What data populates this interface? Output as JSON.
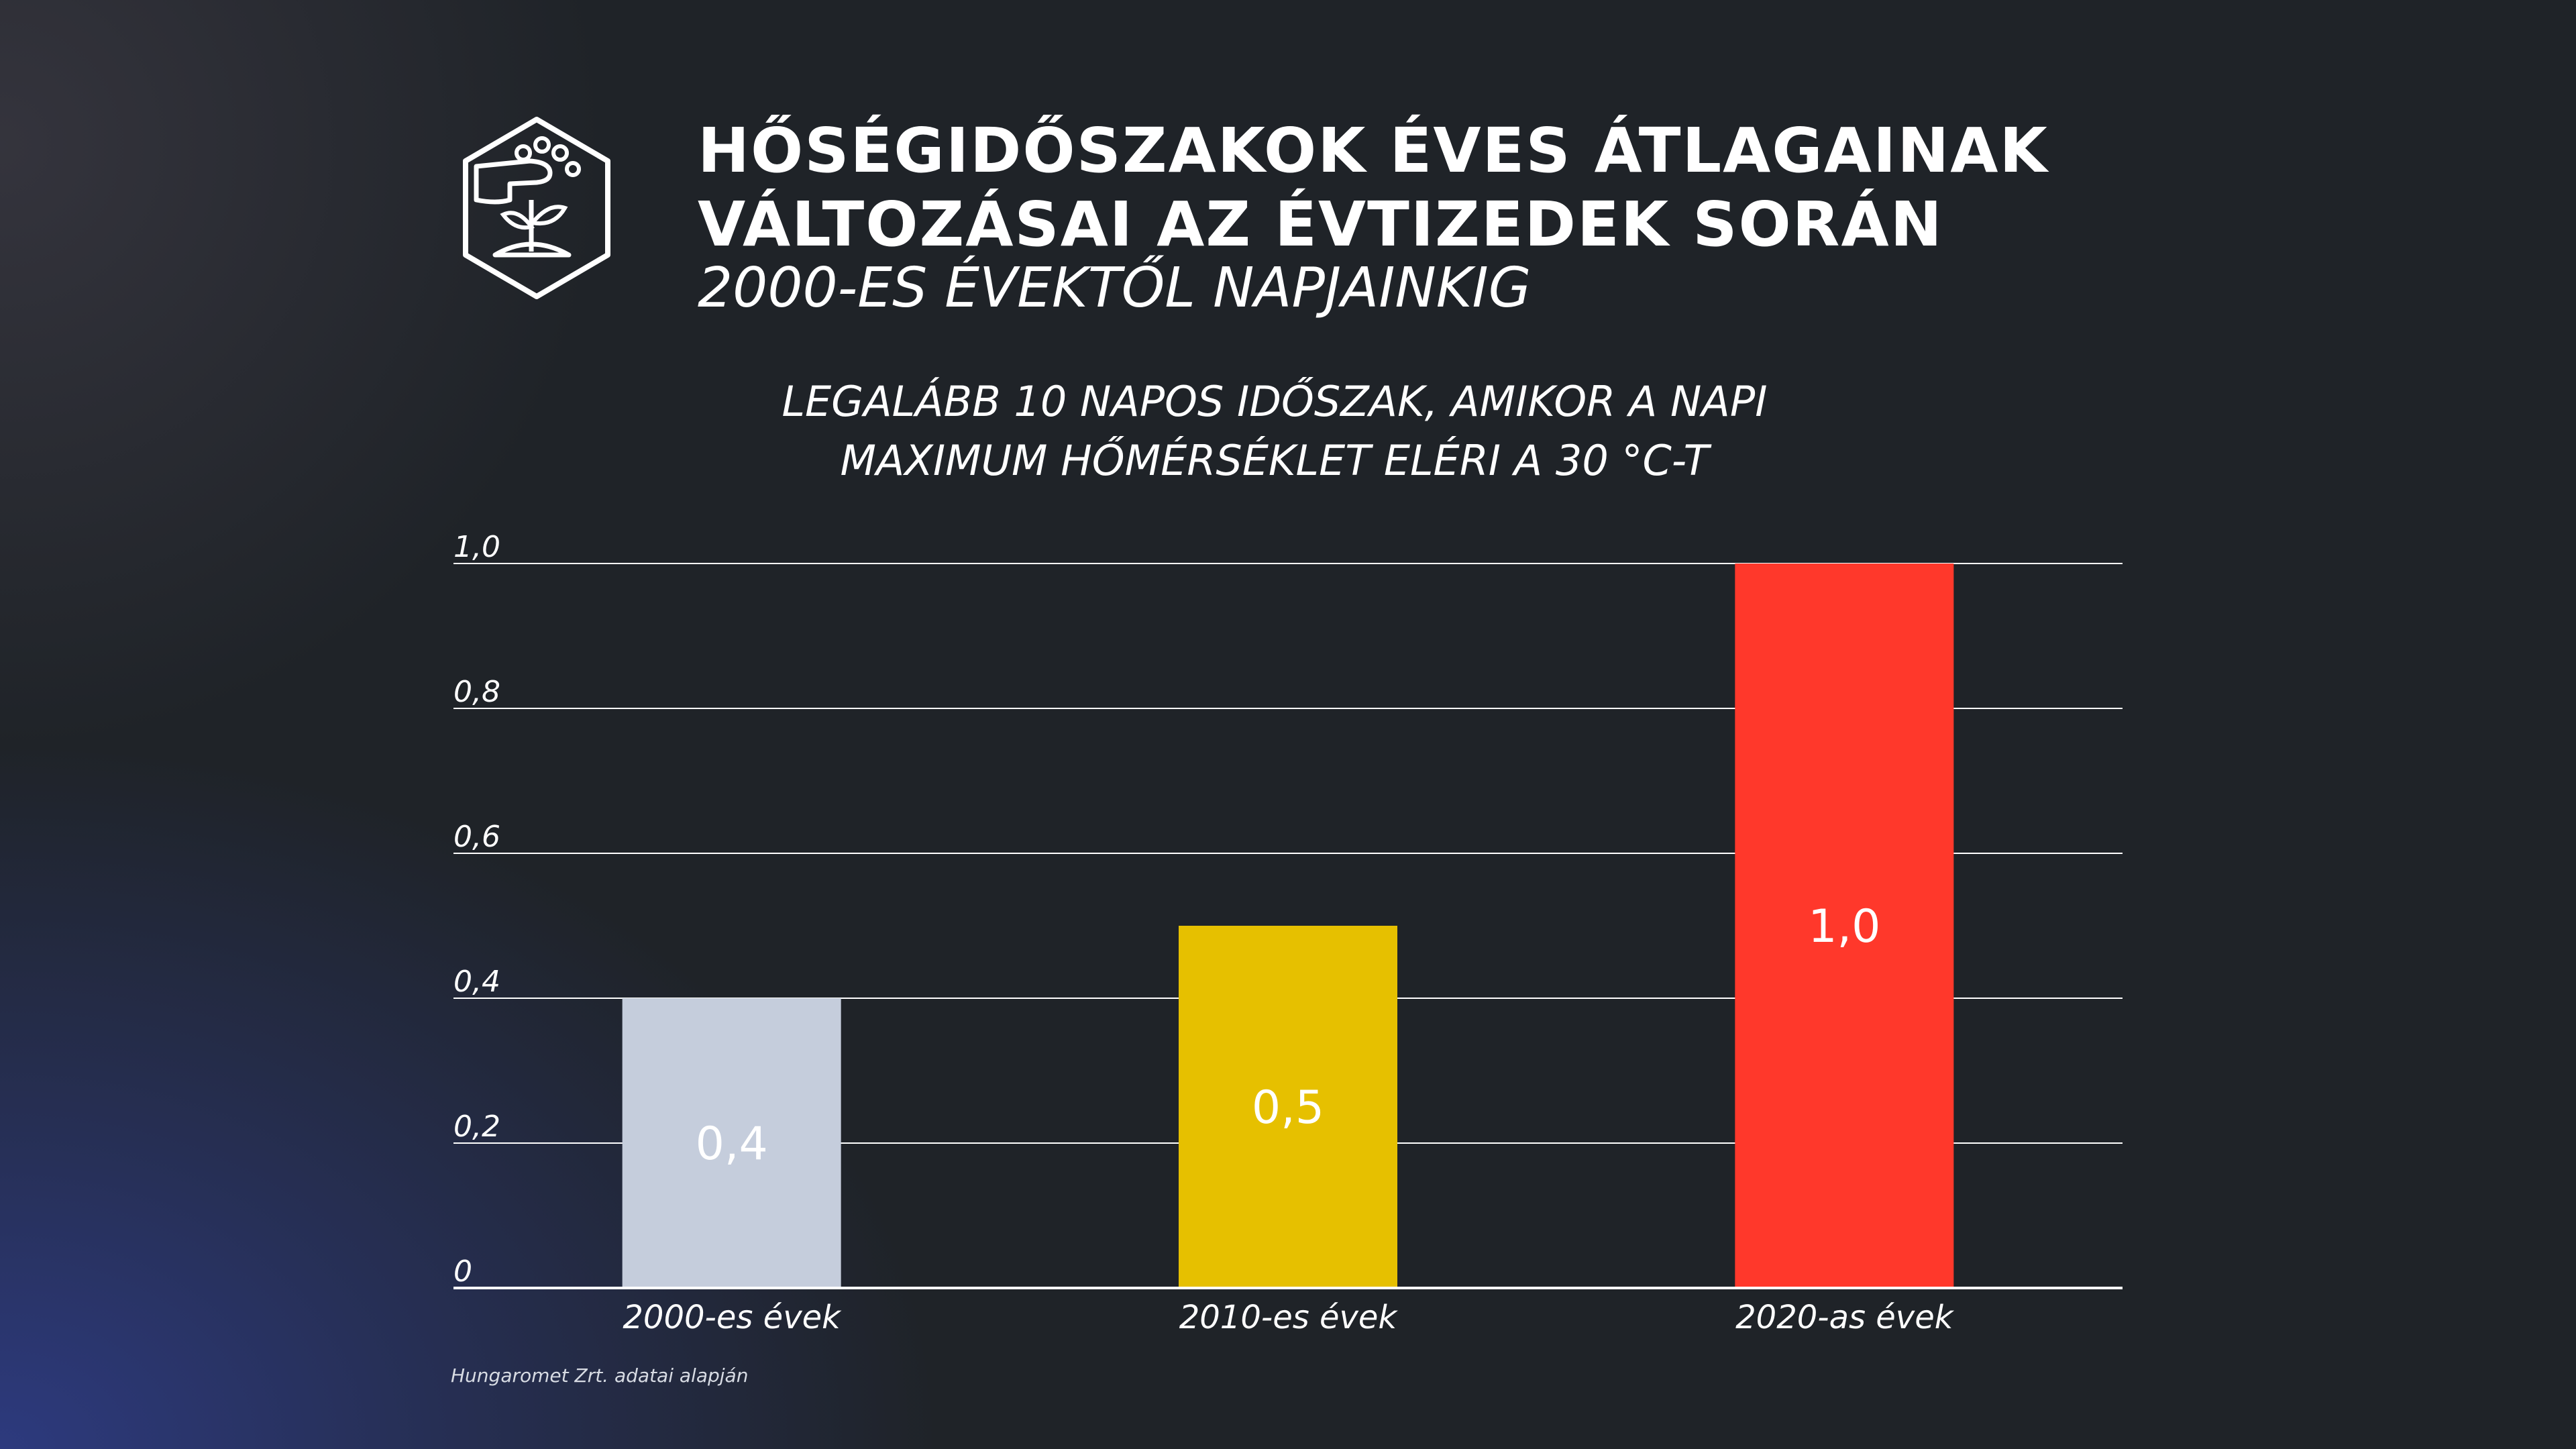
{
  "header": {
    "title_line1": "HŐSÉGIDŐSZAKOK ÉVES ÁTLAGAINAK",
    "title_line2": "VÁLTOZÁSAI AZ ÉVTIZEDEK SORÁN",
    "subtitle": "2000-ES ÉVEKTŐL NAPJAINKIG",
    "logo_icon": "hand-with-sprout-hexagon-icon"
  },
  "chart_note": {
    "line1": "LEGALÁBB 10 NAPOS IDŐSZAK, AMIKOR A NAPI",
    "line2": "MAXIMUM HŐMÉRSÉKLET ELÉRI A 30 °C-T"
  },
  "chart_data": {
    "type": "bar",
    "categories": [
      "2000-es évek",
      "2010-es évek",
      "2020-as évek"
    ],
    "values": [
      0.4,
      0.5,
      1.0
    ],
    "value_labels": [
      "0,4",
      "0,5",
      "1,0"
    ],
    "colors": [
      "#c5cddc",
      "#e6c000",
      "#ff382b"
    ],
    "ylim": [
      0,
      1.0
    ],
    "yticks": [
      0,
      0.2,
      0.4,
      0.6,
      0.8,
      1.0
    ],
    "ytick_labels": [
      "0",
      "0,2",
      "0,4",
      "0,6",
      "0,8",
      "1,0"
    ],
    "grid": true,
    "xlabel": "",
    "ylabel": ""
  },
  "source": "Hungaromet Zrt. adatai alapján"
}
